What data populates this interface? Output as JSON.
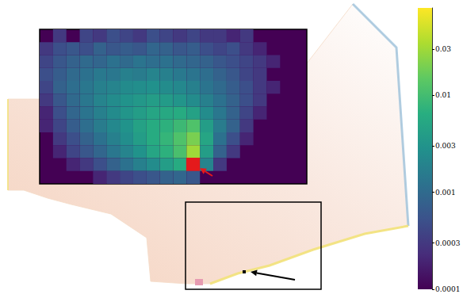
{
  "chart_data": {
    "type": "heatmap",
    "log": true,
    "cells": [
      [
        null,
        0.0003,
        null,
        0.0004,
        0.0003,
        0.0005,
        0.0004,
        0.0003,
        0.0005,
        0.0004,
        0.0003,
        0.0004,
        0.0003,
        0.0003,
        0.0002,
        0.0003,
        null,
        null,
        null,
        null
      ],
      [
        0.0003,
        0.0005,
        0.0006,
        0.0005,
        0.0008,
        0.0006,
        0.0007,
        0.0006,
        0.0009,
        0.0008,
        0.0006,
        0.0007,
        0.0005,
        0.0004,
        0.0005,
        0.0003,
        0.0002,
        null,
        null,
        null
      ],
      [
        0.0004,
        0.0006,
        0.0008,
        0.001,
        0.0009,
        0.0012,
        0.001,
        0.0013,
        0.0011,
        0.0012,
        0.001,
        0.0009,
        0.0008,
        0.0006,
        0.0005,
        0.0004,
        0.0003,
        0.0002,
        null,
        null
      ],
      [
        0.0005,
        0.0007,
        0.001,
        0.0012,
        0.0015,
        0.0014,
        0.0018,
        0.0016,
        0.002,
        0.0018,
        0.0015,
        0.0013,
        0.0011,
        0.0008,
        0.0006,
        0.0004,
        0.0003,
        null,
        null,
        null
      ],
      [
        0.0004,
        0.0008,
        0.0011,
        0.0014,
        0.0018,
        0.002,
        0.0024,
        0.0026,
        0.0028,
        0.0025,
        0.0022,
        0.0018,
        0.0013,
        0.001,
        0.0007,
        0.0005,
        0.0003,
        0.0002,
        null,
        null
      ],
      [
        0.0003,
        0.0006,
        0.001,
        0.0014,
        0.002,
        0.0025,
        0.003,
        0.0035,
        0.004,
        0.0038,
        0.0032,
        0.0025,
        0.0018,
        0.0012,
        0.0008,
        0.0005,
        0.0003,
        null,
        null,
        null
      ],
      [
        0.0002,
        0.0005,
        0.0009,
        0.0013,
        0.0018,
        0.0024,
        0.0032,
        0.004,
        0.005,
        0.0055,
        0.006,
        0.0045,
        0.0025,
        0.0014,
        0.0008,
        0.0004,
        0.0002,
        null,
        null,
        null
      ],
      [
        0.0002,
        0.0004,
        0.0007,
        0.0011,
        0.0016,
        0.0022,
        0.003,
        0.0045,
        0.006,
        0.007,
        0.009,
        0.012,
        0.004,
        0.0016,
        0.0008,
        0.0003,
        null,
        null,
        null,
        null
      ],
      [
        null,
        0.0003,
        0.0005,
        0.0008,
        0.0012,
        0.0018,
        0.0026,
        0.004,
        0.006,
        0.008,
        0.012,
        0.02,
        0.005,
        0.0012,
        0.0005,
        0.0002,
        null,
        null,
        null,
        null
      ],
      [
        null,
        0.0002,
        0.0004,
        0.0006,
        0.0009,
        0.0014,
        0.002,
        0.003,
        0.005,
        0.007,
        0.011,
        0.03,
        0.004,
        0.0008,
        0.0003,
        null,
        null,
        null,
        null,
        null
      ],
      [
        null,
        null,
        0.0002,
        0.0003,
        0.0005,
        0.0008,
        0.0012,
        0.0018,
        0.0025,
        0.004,
        0.006,
        0.06,
        0.002,
        0.0003,
        null,
        null,
        null,
        null,
        null,
        null
      ],
      [
        null,
        null,
        null,
        null,
        0.0002,
        0.0003,
        0.0004,
        0.0005,
        0.0006,
        0.0008,
        0.0009,
        0.0006,
        null,
        null,
        null,
        null,
        null,
        null,
        null,
        null
      ]
    ],
    "colorbar": {
      "lim": [
        0.0001,
        0.08
      ],
      "ticks": [
        0.0001,
        0.0003,
        0.001,
        0.003,
        0.01,
        0.03
      ]
    }
  }
}
